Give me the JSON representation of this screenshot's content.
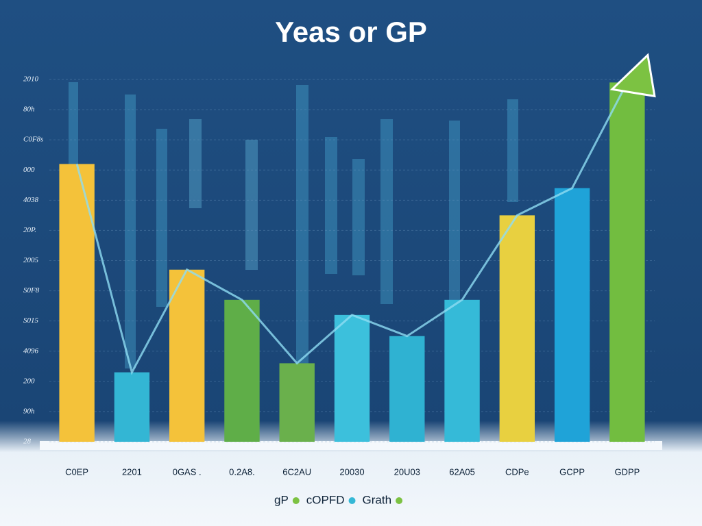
{
  "chart_data": {
    "type": "bar",
    "title": "Yeas or GP",
    "categories": [
      "C0EP",
      "2201",
      "0GAS .",
      "0.2A8.",
      "6C2AU",
      "20030",
      "20U03",
      "62A05",
      "CDPe",
      "GCPP",
      "GDPP"
    ],
    "values": [
      9.2,
      2.3,
      5.7,
      4.7,
      2.6,
      4.2,
      3.5,
      4.7,
      7.5,
      8.4,
      11.9
    ],
    "colors": [
      "#f4c23a",
      "#33b6d4",
      "#f4c23a",
      "#5fae48",
      "#6ab04c",
      "#3cc0dc",
      "#2fb2d2",
      "#35bad8",
      "#e8d040",
      "#1fa3d8",
      "#72bd40"
    ],
    "ylim": [
      0,
      12
    ],
    "yticks": [
      {
        "value": 0,
        "label": "28"
      },
      {
        "value": 1,
        "label": "90h"
      },
      {
        "value": 2,
        "label": "200"
      },
      {
        "value": 3,
        "label": "4096"
      },
      {
        "value": 4,
        "label": "S015"
      },
      {
        "value": 5,
        "label": "S0F8"
      },
      {
        "value": 6,
        "label": "2005"
      },
      {
        "value": 7,
        "label": "20P."
      },
      {
        "value": 8,
        "label": "4038"
      },
      {
        "value": 9,
        "label": "000"
      },
      {
        "value": 10,
        "label": "C0F8s"
      },
      {
        "value": 11,
        "label": "80h"
      },
      {
        "value": 12,
        "label": "2010"
      }
    ],
    "grid": true,
    "legend": [
      {
        "label": "gP",
        "color": "#7cc242"
      },
      {
        "label": "cOPFD",
        "color": "#35b8d6"
      },
      {
        "label": "Grath",
        "color": "#7cc242"
      }
    ]
  }
}
